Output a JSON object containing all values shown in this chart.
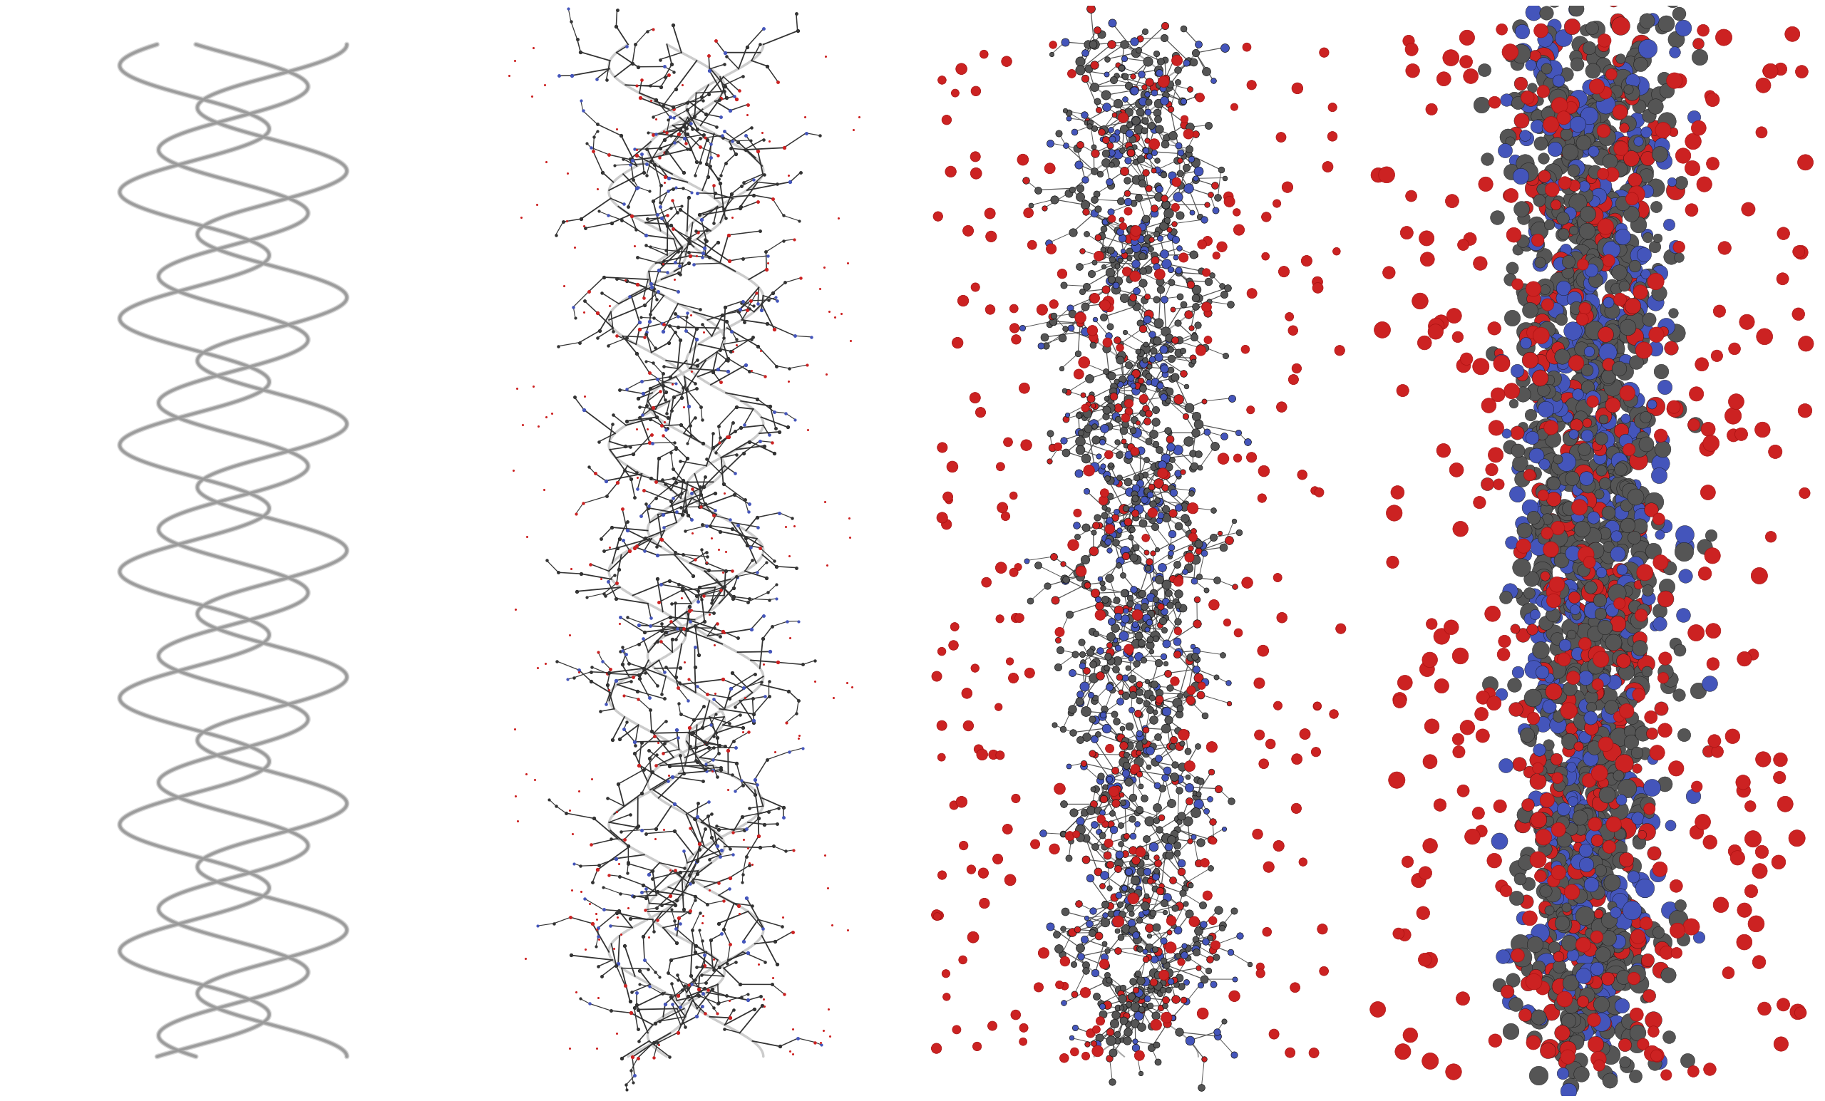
{
  "background_color": "#ffffff",
  "helix_color_light": "#bbbbbb",
  "helix_color_dark": "#333333",
  "atom_C": "#555555",
  "atom_N": "#4455bb",
  "atom_O": "#cc2222",
  "water_color": "#cc2222",
  "n_turns_backbone": 8,
  "n_turns_detail": 8,
  "n_strands": 3,
  "panel1_amplitude": 0.1,
  "panel1_strand_sep": 0.06,
  "panel2_amplitude": 0.06,
  "panel2_strand_sep": 0.07,
  "panel3_amplitude": 0.055,
  "panel3_strand_sep": 0.065,
  "panel4_amplitude": 0.05,
  "panel4_strand_sep": 0.06
}
